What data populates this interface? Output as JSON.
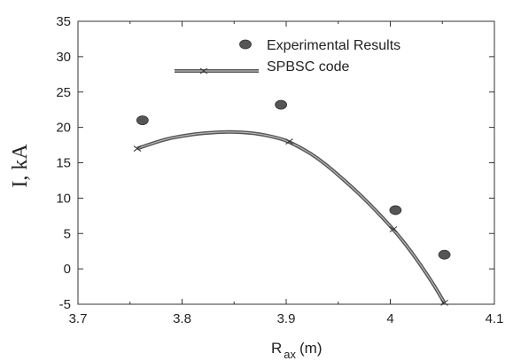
{
  "chart_data": {
    "type": "scatter",
    "xlabel": "R",
    "xlabel_sub": "ax",
    "xlabel_unit": "(m)",
    "ylabel": "I, kA",
    "xlim": [
      3.7,
      4.1
    ],
    "ylim": [
      -5,
      35
    ],
    "xticks": [
      3.7,
      3.8,
      3.9,
      4,
      4.1
    ],
    "yticks": [
      -5,
      0,
      5,
      10,
      15,
      20,
      25,
      30,
      35
    ],
    "grid": false,
    "legend_position": "top-right",
    "series": [
      {
        "name": "Experimental Results",
        "kind": "scatter",
        "marker": "filled-ellipse",
        "color": "#555555",
        "x": [
          3.762,
          3.895,
          4.005,
          4.052
        ],
        "y": [
          21.0,
          23.2,
          8.3,
          2.0
        ]
      },
      {
        "name": "SPBSC code",
        "kind": "line",
        "marker": "x",
        "color": "#666666",
        "x": [
          3.757,
          3.903,
          4.003,
          4.052
        ],
        "y": [
          17.0,
          18.0,
          5.6,
          -4.8
        ],
        "curve_x": [
          3.757,
          3.78,
          3.8,
          3.82,
          3.845,
          3.87,
          3.89,
          3.903,
          3.93,
          3.96,
          3.98,
          4.003,
          4.02,
          4.04,
          4.052
        ],
        "curve_y": [
          17.0,
          18.2,
          18.8,
          19.2,
          19.4,
          19.2,
          18.6,
          18.0,
          15.8,
          12.0,
          9.2,
          5.6,
          2.5,
          -1.8,
          -4.8
        ]
      }
    ]
  }
}
